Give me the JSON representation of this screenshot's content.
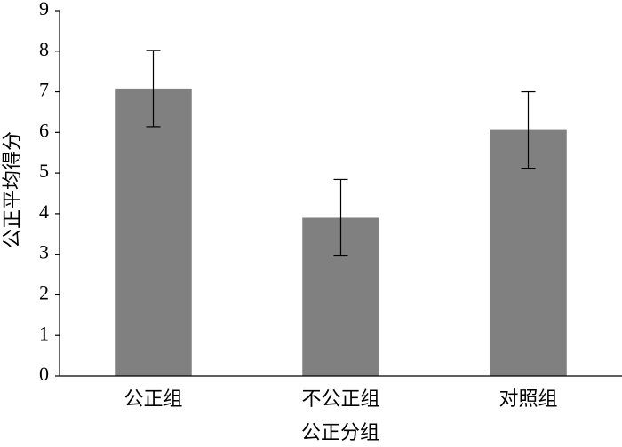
{
  "chart_data": {
    "type": "bar",
    "x_label": "公正分组",
    "y_label": "公正平均得分",
    "categories": [
      "公正组",
      "不公正组",
      "对照组"
    ],
    "values": [
      7.08,
      3.9,
      6.06
    ],
    "errors": [
      0.94,
      0.94,
      0.94
    ],
    "color": "#808080",
    "ylim": [
      0,
      9
    ],
    "yticks": [
      0,
      1,
      2,
      3,
      4,
      5,
      6,
      7,
      8,
      9
    ],
    "grid": false
  }
}
